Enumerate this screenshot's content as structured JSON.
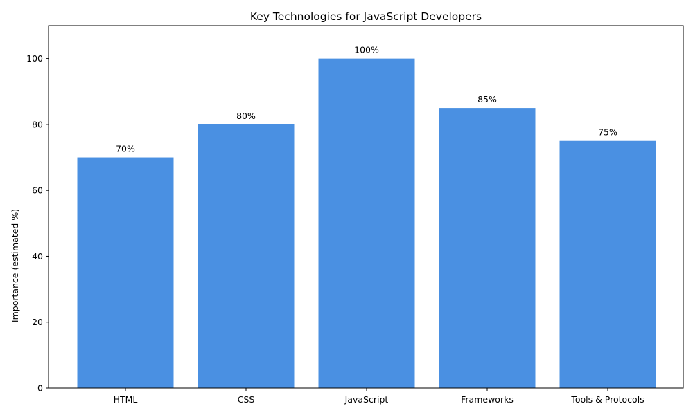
{
  "chart_data": {
    "type": "bar",
    "title": "Key Technologies for JavaScript Developers",
    "xlabel": "",
    "ylabel": "Importance (estimated %)",
    "categories": [
      "HTML",
      "CSS",
      "JavaScript",
      "Frameworks",
      "Tools & Protocols"
    ],
    "values": [
      70,
      80,
      100,
      85,
      75
    ],
    "data_labels": [
      "70%",
      "80%",
      "100%",
      "85%",
      "75%"
    ],
    "ylim": [
      0,
      110
    ],
    "yticks": [
      0,
      20,
      40,
      60,
      80,
      100
    ],
    "grid": false,
    "bar_color": "#4a90e2"
  }
}
